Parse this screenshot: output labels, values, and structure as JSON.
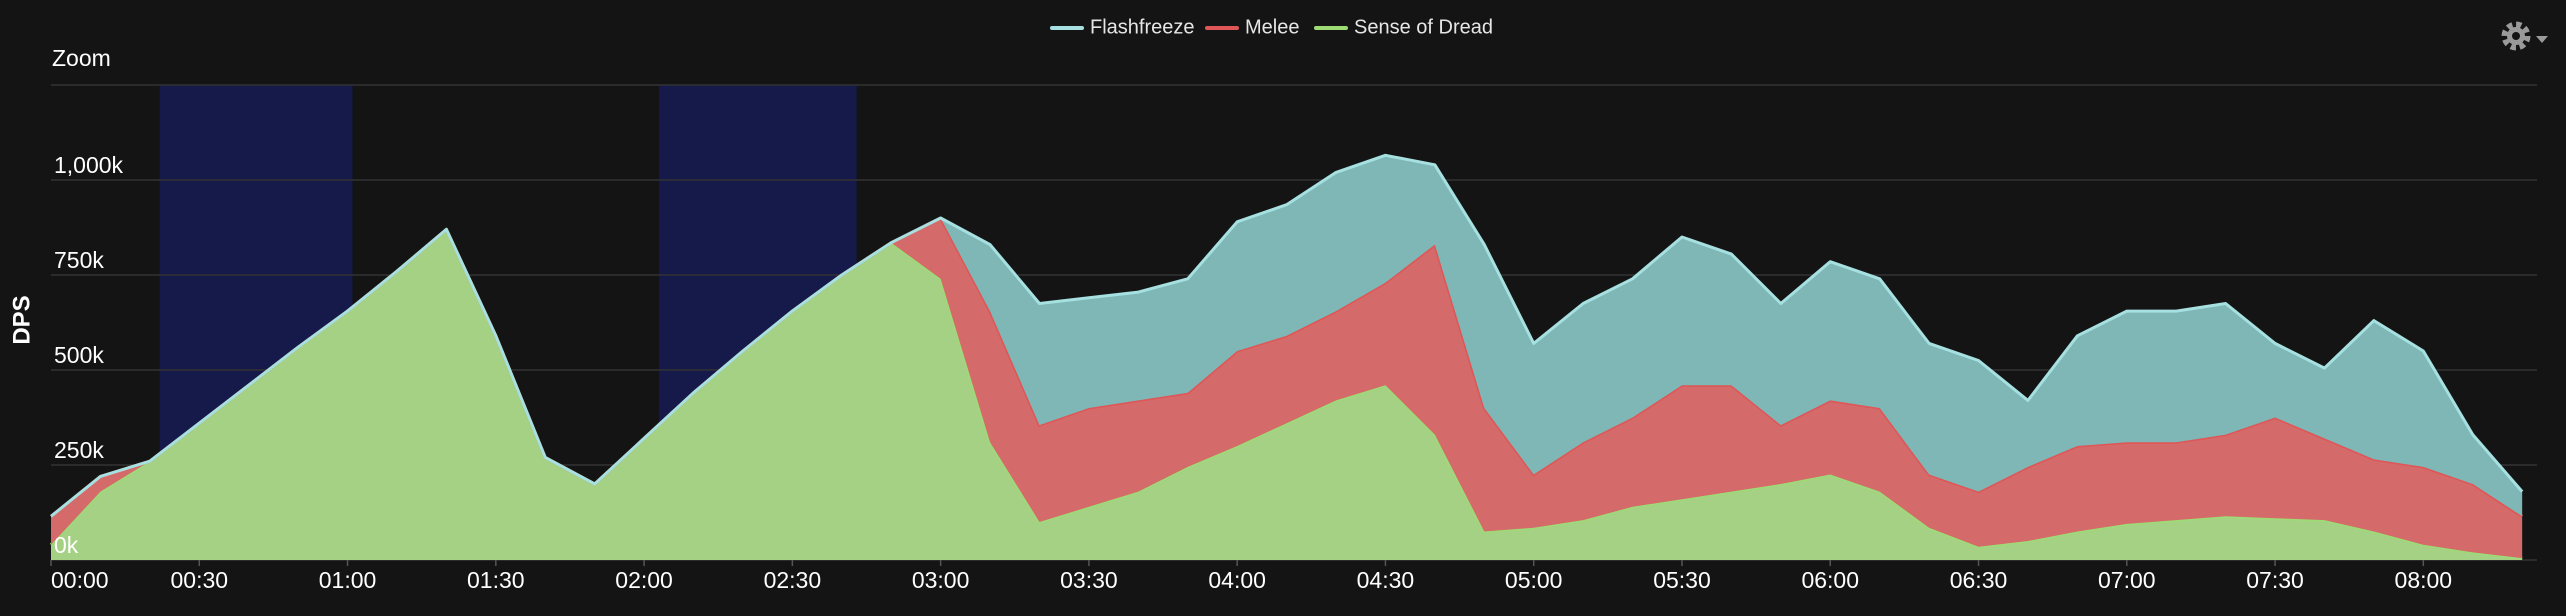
{
  "chart_data": {
    "type": "stacked-area",
    "zoom_label": "Zoom",
    "y_axis_title": "DPS",
    "x": [
      0,
      10,
      20,
      30,
      40,
      50,
      60,
      70,
      80,
      90,
      100,
      110,
      120,
      130,
      140,
      150,
      160,
      170,
      180,
      190,
      200,
      210,
      220,
      230,
      240,
      250,
      260,
      270,
      280,
      290,
      300,
      310,
      320,
      330,
      340,
      350,
      360,
      370,
      380,
      390,
      400,
      410,
      420,
      430,
      440,
      450,
      460,
      470,
      480,
      490,
      500
    ],
    "series": [
      {
        "name": "Flashfreeze",
        "color": "#a6e0e0",
        "fill": "#7fb6b6",
        "values": [
          0,
          0,
          0,
          0,
          0,
          0,
          0,
          0,
          0,
          0,
          0,
          0,
          0,
          0,
          0,
          0,
          0,
          0,
          0,
          175000,
          320000,
          290000,
          285000,
          300000,
          340000,
          345000,
          365000,
          335000,
          210000,
          430000,
          345000,
          365000,
          365000,
          390000,
          345000,
          320000,
          365000,
          340000,
          345000,
          345000,
          175000,
          290000,
          345000,
          345000,
          345000,
          195000,
          185000,
          365000,
          305000,
          130000,
          65000
        ]
      },
      {
        "name": "Melee",
        "color": "#e05555",
        "fill": "#d46a6a",
        "values": [
          75000,
          40000,
          0,
          0,
          0,
          0,
          0,
          0,
          0,
          0,
          0,
          0,
          0,
          0,
          0,
          0,
          0,
          0,
          160000,
          345000,
          255000,
          260000,
          240000,
          195000,
          250000,
          230000,
          235000,
          270000,
          500000,
          325000,
          140000,
          205000,
          235000,
          300000,
          280000,
          155000,
          195000,
          220000,
          140000,
          145000,
          195000,
          225000,
          215000,
          205000,
          215000,
          265000,
          215000,
          190000,
          205000,
          180000,
          110000
        ]
      },
      {
        "name": "Sense of Dread",
        "color": "#9ddc75",
        "fill": "#a4d184",
        "values": [
          40000,
          180000,
          260000,
          360000,
          460000,
          560000,
          655000,
          760000,
          870000,
          590000,
          270000,
          200000,
          320000,
          440000,
          550000,
          655000,
          750000,
          835000,
          740000,
          310000,
          100000,
          140000,
          180000,
          245000,
          300000,
          360000,
          420000,
          460000,
          330000,
          75000,
          85000,
          105000,
          140000,
          160000,
          180000,
          200000,
          225000,
          180000,
          85000,
          35000,
          50000,
          75000,
          95000,
          105000,
          115000,
          110000,
          105000,
          75000,
          40000,
          20000,
          5000
        ]
      }
    ],
    "xlim": [
      0,
      503
    ],
    "xticks": [
      {
        "value": 0,
        "label": "00:00"
      },
      {
        "value": 30,
        "label": "00:30"
      },
      {
        "value": 60,
        "label": "01:00"
      },
      {
        "value": 90,
        "label": "01:30"
      },
      {
        "value": 120,
        "label": "02:00"
      },
      {
        "value": 150,
        "label": "02:30"
      },
      {
        "value": 180,
        "label": "03:00"
      },
      {
        "value": 210,
        "label": "03:30"
      },
      {
        "value": 240,
        "label": "04:00"
      },
      {
        "value": 270,
        "label": "04:30"
      },
      {
        "value": 300,
        "label": "05:00"
      },
      {
        "value": 330,
        "label": "05:30"
      },
      {
        "value": 360,
        "label": "06:00"
      },
      {
        "value": 390,
        "label": "06:30"
      },
      {
        "value": 420,
        "label": "07:00"
      },
      {
        "value": 450,
        "label": "07:30"
      },
      {
        "value": 480,
        "label": "08:00"
      }
    ],
    "ylim": [
      0,
      1250000
    ],
    "yticks": [
      {
        "value": 0,
        "label": "0k"
      },
      {
        "value": 250000,
        "label": "250k"
      },
      {
        "value": 500000,
        "label": "500k"
      },
      {
        "value": 750000,
        "label": "750k"
      },
      {
        "value": 1000000,
        "label": "1,000k"
      }
    ],
    "grid": true,
    "plot_bands": [
      {
        "from": 22,
        "to": 61
      },
      {
        "from": 123,
        "to": 163
      }
    ],
    "plot_band_color": "#151a4a"
  }
}
